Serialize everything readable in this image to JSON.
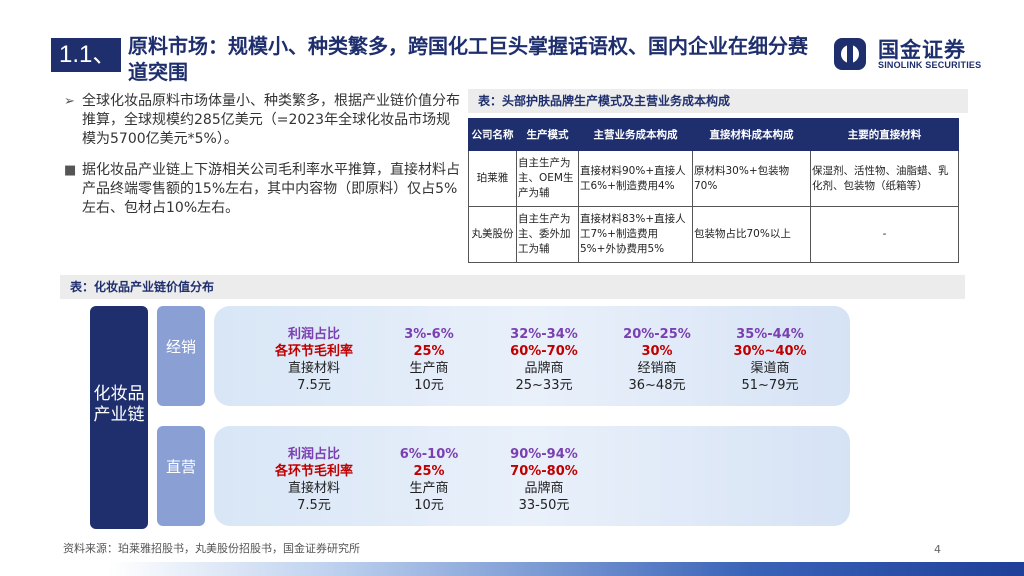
{
  "header": {
    "section": "1.1、",
    "title": "原料市场：规模小、种类繁多，跨国化工巨头掌握话语权、国内企业在细分赛道突围"
  },
  "logo": {
    "cn": "国金证券",
    "en": "SINOLINK SECURITIES"
  },
  "bullets": [
    {
      "mark": "➢",
      "text": "全球化妆品原料市场体量小、种类繁多，根据产业链价值分布推算，全球规模约285亿美元（=2023年全球化妆品市场规模为5700亿美元*5%）。"
    },
    {
      "mark": "■",
      "text": "据化妆品产业链上下游相关公司毛利率水平推算，直接材料占产品终端零售额的15%左右，其中内容物（即原料）仅占5%左右、包材占10%左右。"
    }
  ],
  "table_caption": "表：头部护肤品牌生产模式及主营业务成本构成",
  "table": {
    "headers": [
      "公司名称",
      "生产模式",
      "主营业务成本构成",
      "直接材料成本构成",
      "主要的直接材料"
    ],
    "rows": [
      [
        "珀莱雅",
        "自主生产为主、OEM生产为辅",
        "直接材料90%+直接人工6%+制造费用4%",
        "原材料30%+包装物70%",
        "保湿剂、活性物、油脂蜡、乳化剂、包装物（纸箱等）"
      ],
      [
        "丸美股份",
        "自主生产为主、委外加工为辅",
        "直接材料83%+直接人工7%+制造费用5%+外协费用5%",
        "包装物占比70%以上",
        "-"
      ]
    ]
  },
  "chain_caption": "表：化妆品产业链价值分布",
  "chain": {
    "label": "化妆品产业链",
    "modes": [
      {
        "name": "经销",
        "columns": [
          {
            "profit": "利润占比",
            "margin": "各环节毛利率",
            "name": "直接材料",
            "price": "7.5元"
          },
          {
            "profit": "3%-6%",
            "margin": "25%",
            "name": "生产商",
            "price": "10元"
          },
          {
            "profit": "32%-34%",
            "margin": "60%-70%",
            "name": "品牌商",
            "price": "25~33元"
          },
          {
            "profit": "20%-25%",
            "margin": "30%",
            "name": "经销商",
            "price": "36~48元"
          },
          {
            "profit": "35%-44%",
            "margin": "30%~40%",
            "name": "渠道商",
            "price": "51~79元"
          }
        ]
      },
      {
        "name": "直营",
        "columns": [
          {
            "profit": "利润占比",
            "margin": "各环节毛利率",
            "name": "直接材料",
            "price": "7.5元"
          },
          {
            "profit": "6%-10%",
            "margin": "25%",
            "name": "生产商",
            "price": "10元"
          },
          {
            "profit": "90%-94%",
            "margin": "70%-80%",
            "name": "品牌商",
            "price": "33-50元"
          }
        ]
      }
    ]
  },
  "source": "资料来源：珀莱雅招股书，丸美股份招股书，国金证券研究所",
  "page_number": "4",
  "colors": {
    "navy": "#1f2f6e",
    "purple": "#7a3fb0",
    "red": "#c00000",
    "mode_box": "#8aa0d4"
  }
}
